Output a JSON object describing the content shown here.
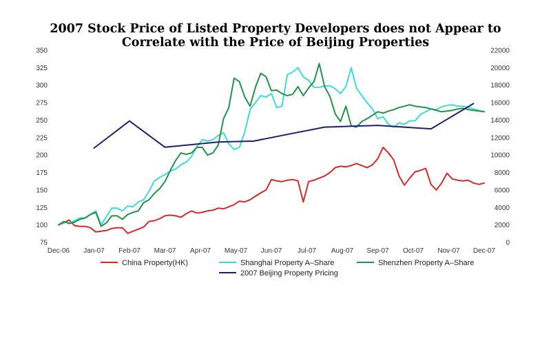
{
  "chart_data": {
    "type": "line",
    "title": "2007 Stock Price of Listed Property Developers does not Appear to Correlate with the Price of Beijing Properties",
    "title_lines": [
      "2007 Stock Price of Listed Property Developers does not Appear to",
      "Correlate with the Price of Beijing Properties"
    ],
    "x_labels": [
      "Dec-06",
      "Jan-07",
      "Feb-07",
      "Mar-07",
      "Apr-07",
      "May-07",
      "Jun-07",
      "Jul-07",
      "Aug-07",
      "Sep-07",
      "Oct-07",
      "Nov-07",
      "Dec-07"
    ],
    "y_left": {
      "ticks": [
        75,
        100,
        125,
        150,
        175,
        200,
        225,
        250,
        275,
        300,
        325,
        350
      ],
      "lim": [
        75,
        350
      ]
    },
    "y_right": {
      "ticks": [
        0,
        2000,
        4000,
        6000,
        8000,
        10000,
        12000,
        14000,
        16000,
        18000,
        20000,
        22000
      ],
      "lim": [
        0,
        22000
      ]
    },
    "grid": false,
    "legend_position": "bottom",
    "series": [
      {
        "name": "China Property(HK)",
        "axis": "left",
        "color": "#d42a2a",
        "x": [
          0,
          0.15,
          0.3,
          0.45,
          0.6,
          0.75,
          0.9,
          1.05,
          1.2,
          1.35,
          1.5,
          1.65,
          1.8,
          1.95,
          2.1,
          2.25,
          2.4,
          2.55,
          2.7,
          2.85,
          3.0,
          3.15,
          3.3,
          3.45,
          3.6,
          3.75,
          3.9,
          4.05,
          4.2,
          4.35,
          4.5,
          4.65,
          4.8,
          4.95,
          5.1,
          5.25,
          5.4,
          5.55,
          5.7,
          5.85,
          6.0,
          6.15,
          6.3,
          6.45,
          6.6,
          6.75,
          6.9,
          7.05,
          7.2,
          7.35,
          7.5,
          7.65,
          7.8,
          7.95,
          8.1,
          8.25,
          8.4,
          8.55,
          8.7,
          8.85,
          9.0,
          9.15,
          9.3,
          9.45,
          9.6,
          9.75,
          9.9,
          10.05,
          10.2,
          10.35,
          10.5,
          10.65,
          10.8,
          10.95,
          11.1,
          11.25,
          11.4,
          11.55,
          11.7,
          11.85,
          12.0
        ],
        "values": [
          100,
          103,
          107,
          99,
          98,
          98,
          96,
          90,
          91,
          92,
          95,
          96,
          96,
          88,
          91,
          94,
          97,
          105,
          106,
          109,
          113,
          114,
          113,
          111,
          116,
          120,
          117,
          118,
          120,
          121,
          124,
          123,
          126,
          129,
          134,
          133,
          136,
          141,
          146,
          150,
          165,
          163,
          162,
          164,
          165,
          163,
          133,
          162,
          164,
          167,
          170,
          175,
          182,
          184,
          183,
          185,
          188,
          185,
          182,
          186,
          195,
          211,
          203,
          193,
          170,
          157,
          167,
          176,
          178,
          181,
          158,
          150,
          160,
          174,
          166,
          164,
          163,
          164,
          160,
          158,
          160
        ]
      },
      {
        "name": "Shanghai Property A–Share",
        "axis": "left",
        "color": "#3fd9dc",
        "x": [
          0,
          0.15,
          0.3,
          0.45,
          0.6,
          0.75,
          0.9,
          1.05,
          1.2,
          1.35,
          1.5,
          1.65,
          1.8,
          1.95,
          2.1,
          2.25,
          2.4,
          2.55,
          2.7,
          2.85,
          3.0,
          3.15,
          3.3,
          3.45,
          3.6,
          3.75,
          3.9,
          4.05,
          4.2,
          4.35,
          4.5,
          4.65,
          4.8,
          4.95,
          5.1,
          5.25,
          5.4,
          5.55,
          5.7,
          5.85,
          6.0,
          6.15,
          6.3,
          6.45,
          6.6,
          6.75,
          6.9,
          7.05,
          7.2,
          7.35,
          7.5,
          7.65,
          7.8,
          7.95,
          8.1,
          8.25,
          8.4,
          8.55,
          8.7,
          8.85,
          9.0,
          9.15,
          9.3,
          9.45,
          9.6,
          9.75,
          9.9,
          10.05,
          10.2,
          10.35,
          10.5,
          10.65,
          10.8,
          10.95,
          11.1,
          11.25,
          11.4,
          11.55,
          11.7,
          11.85,
          12.0
        ],
        "values": [
          100,
          104,
          103,
          106,
          110,
          110,
          115,
          120,
          100,
          112,
          124,
          124,
          120,
          127,
          126,
          133,
          136,
          148,
          163,
          168,
          172,
          177,
          180,
          186,
          190,
          198,
          212,
          222,
          220,
          222,
          228,
          232,
          216,
          208,
          211,
          233,
          265,
          275,
          285,
          283,
          288,
          268,
          270,
          315,
          319,
          325,
          312,
          307,
          297,
          297,
          299,
          299,
          295,
          288,
          298,
          325,
          296,
          285,
          275,
          266,
          252,
          255,
          244,
          240,
          246,
          244,
          249,
          249,
          258,
          262,
          266,
          265,
          269,
          271,
          272,
          270,
          270,
          268,
          266,
          264,
          262
        ]
      },
      {
        "name": "Shenzhen Property A–Share",
        "axis": "left",
        "color": "#25914a",
        "x": [
          0,
          0.15,
          0.3,
          0.45,
          0.6,
          0.75,
          0.9,
          1.05,
          1.2,
          1.35,
          1.5,
          1.65,
          1.8,
          1.95,
          2.1,
          2.25,
          2.4,
          2.55,
          2.7,
          2.85,
          3.0,
          3.15,
          3.3,
          3.45,
          3.6,
          3.75,
          3.9,
          4.05,
          4.2,
          4.35,
          4.5,
          4.65,
          4.8,
          4.95,
          5.1,
          5.25,
          5.4,
          5.55,
          5.7,
          5.85,
          6.0,
          6.15,
          6.3,
          6.45,
          6.6,
          6.75,
          6.9,
          7.05,
          7.2,
          7.35,
          7.5,
          7.65,
          7.8,
          7.95,
          8.1,
          8.25,
          8.4,
          8.55,
          8.7,
          8.85,
          9.0,
          9.15,
          9.3,
          9.45,
          9.6,
          9.75,
          9.9,
          10.05,
          10.2,
          10.35,
          10.5,
          10.65,
          10.8,
          10.95,
          11.1,
          11.25,
          11.4,
          11.55,
          11.7,
          11.85,
          12.0
        ],
        "values": [
          100,
          105,
          102,
          104,
          108,
          110,
          115,
          118,
          98,
          103,
          113,
          113,
          108,
          115,
          118,
          120,
          132,
          136,
          145,
          152,
          162,
          178,
          192,
          203,
          201,
          203,
          211,
          211,
          200,
          203,
          214,
          252,
          268,
          310,
          305,
          283,
          270,
          297,
          317,
          312,
          292,
          293,
          288,
          285,
          287,
          298,
          285,
          296,
          305,
          331,
          298,
          284,
          259,
          248,
          270,
          242,
          240,
          248,
          252,
          257,
          262,
          260,
          263,
          265,
          268,
          270,
          272,
          270,
          269,
          268,
          266,
          264,
          262,
          263,
          264,
          266,
          267,
          265,
          264,
          263,
          262
        ]
      },
      {
        "name": "2007 Beijing Property Pricing",
        "axis": "right",
        "color": "#1c1f6b",
        "x": [
          1.0,
          2.0,
          3.0,
          4.5,
          5.5,
          6.5,
          7.5,
          9.0,
          10.5,
          11.7
        ],
        "values": [
          10800,
          13900,
          10900,
          11500,
          11600,
          12400,
          13200,
          13400,
          13000,
          15900
        ]
      }
    ]
  }
}
